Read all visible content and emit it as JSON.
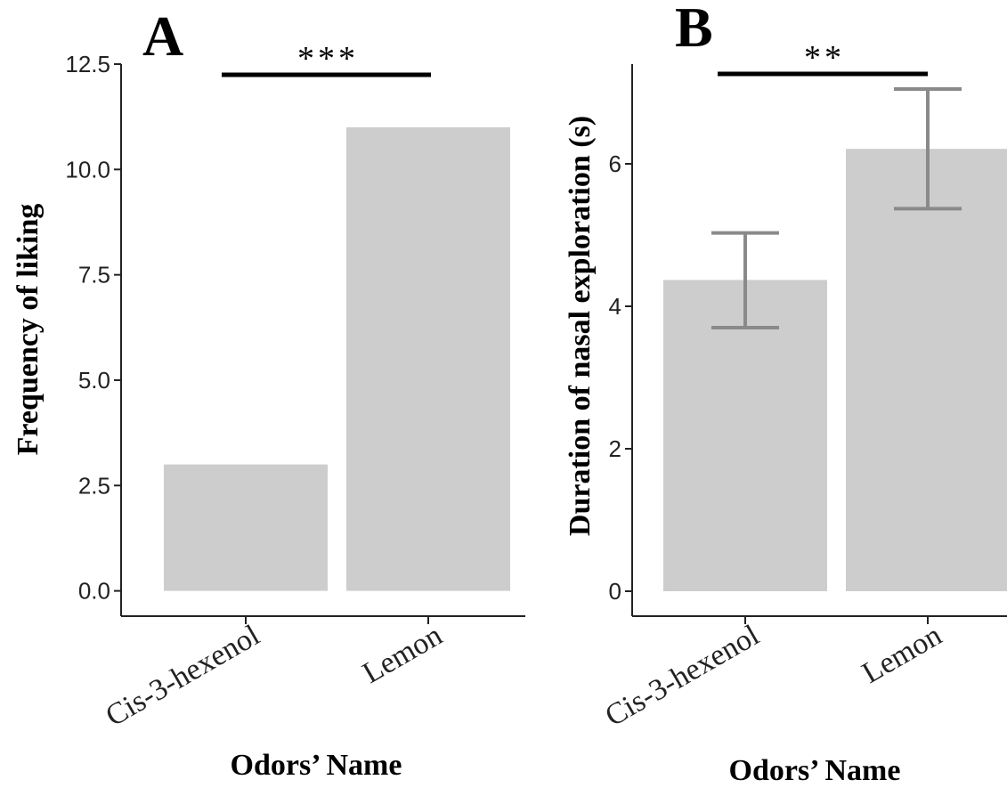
{
  "colors": {
    "bar": "#cdcdcd",
    "errorbar": "#8a8a8a",
    "axis": "#222222",
    "sigbar": "#000000"
  },
  "chart_data": [
    {
      "type": "bar",
      "panel": "A",
      "categories": [
        "Cis-3-hexenol",
        "Lemon"
      ],
      "values": [
        3,
        11
      ],
      "xlabel": "Odors’ Name",
      "ylabel": "Frequency of liking",
      "ylim": [
        -0.6,
        12.5
      ],
      "yticks": [
        0,
        2.5,
        5,
        7.5,
        10,
        12.5
      ],
      "ytick_labels": [
        "0.0",
        "2.5",
        "5.0",
        "7.5",
        "10.0",
        "12.5"
      ],
      "grid": false,
      "significance": {
        "label": "***",
        "between": [
          0,
          1
        ],
        "y": 12.3
      }
    },
    {
      "type": "bar",
      "panel": "B",
      "categories": [
        "Cis-3-hexenol",
        "Lemon"
      ],
      "values": [
        4.37,
        6.21
      ],
      "error_low": [
        3.7,
        5.37
      ],
      "error_high": [
        5.03,
        7.05
      ],
      "xlabel": "Odors’ Name",
      "ylabel": "Duration of nasal exploration (s)",
      "ylim": [
        -0.35,
        7.4
      ],
      "yticks": [
        0,
        2,
        4,
        6
      ],
      "ytick_labels": [
        "0",
        "2",
        "4",
        "6"
      ],
      "grid": false,
      "significance": {
        "label": "**",
        "between": [
          0,
          1
        ],
        "y": 7.3
      }
    }
  ]
}
